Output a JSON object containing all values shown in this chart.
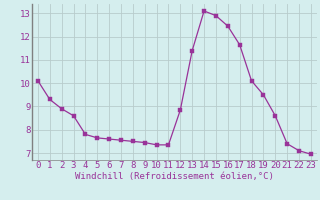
{
  "x": [
    0,
    1,
    2,
    3,
    4,
    5,
    6,
    7,
    8,
    9,
    10,
    11,
    12,
    13,
    14,
    15,
    16,
    17,
    18,
    19,
    20,
    21,
    22,
    23
  ],
  "y": [
    10.1,
    9.3,
    8.9,
    8.6,
    7.8,
    7.65,
    7.6,
    7.55,
    7.5,
    7.45,
    7.35,
    7.35,
    8.85,
    11.4,
    13.1,
    12.9,
    12.45,
    11.65,
    10.1,
    9.5,
    8.6,
    7.4,
    7.1,
    6.95
  ],
  "line_color": "#993399",
  "marker_color": "#993399",
  "bg_color": "#d5eeee",
  "grid_color": "#b8cccc",
  "xlabel": "Windchill (Refroidissement éolien,°C)",
  "ylabel_ticks": [
    7,
    8,
    9,
    10,
    11,
    12,
    13
  ],
  "xlim": [
    -0.5,
    23.5
  ],
  "ylim": [
    6.7,
    13.4
  ],
  "tick_label_color": "#993399",
  "xlabel_color": "#993399",
  "spine_color": "#808080",
  "font_size": 6.5,
  "xlabel_fontsize": 6.5
}
